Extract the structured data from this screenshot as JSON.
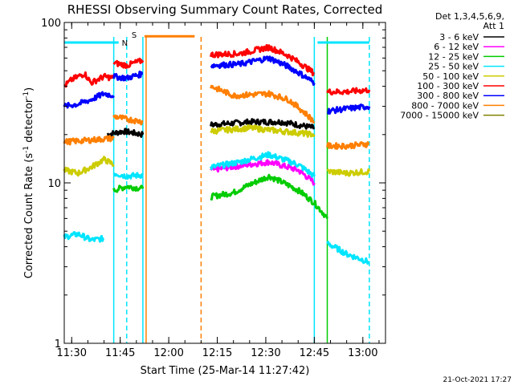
{
  "chart_data": {
    "type": "line",
    "title": "RHESSI Observing Summary Count Rates, Corrected",
    "xlabel": "Start Time (25-Mar-14 11:27:42)",
    "ylabel": "Corrected Count Rate (s⁻¹ detector⁻¹)",
    "ylabel_main": "Corrected Count Rate (s",
    "ylabel_sup1": "-1",
    "ylabel_mid": " detector",
    "ylabel_sup2": "-1",
    "ylabel_end": ")",
    "yscale": "log",
    "ylim": [
      1,
      100
    ],
    "xlim": [
      "11:27:42",
      "13:07:00"
    ],
    "grid": false,
    "xticks": [
      "11:30",
      "11:45",
      "12:00",
      "12:15",
      "12:30",
      "12:45",
      "13:00"
    ],
    "yticks": [
      "1",
      "10",
      "100"
    ],
    "legend_header": [
      "Det 1,3,4,5,6,9,",
      "Att 1"
    ],
    "legend_position": "right",
    "timestamp": "21-Oct-2021 17:27",
    "flags": [
      {
        "label": "N",
        "color": "#00e5ff",
        "segments": [
          [
            "11:27:42",
            "11:44:30"
          ],
          [
            "12:46:00",
            "13:02:00"
          ]
        ],
        "level": 75
      },
      {
        "label": "S",
        "color": "#ff7f00",
        "segments": [
          [
            "11:52:30",
            "12:08:00"
          ]
        ],
        "level": 82
      }
    ],
    "vlines": [
      {
        "t": "11:43:00",
        "color": "#00e5ff",
        "style": "solid"
      },
      {
        "t": "11:47:00",
        "color": "#00e5ff",
        "style": "dashed"
      },
      {
        "t": "11:52:00",
        "color": "#00e5ff",
        "style": "solid"
      },
      {
        "t": "11:53:00",
        "color": "#ff7f00",
        "style": "solid"
      },
      {
        "t": "12:10:00",
        "color": "#ff7f00",
        "style": "dashed"
      },
      {
        "t": "12:45:00",
        "color": "#00e5ff",
        "style": "solid"
      },
      {
        "t": "12:49:00",
        "color": "#00cc00",
        "style": "solid"
      },
      {
        "t": "13:02:00",
        "color": "#00e5ff",
        "style": "dashed"
      }
    ],
    "series": [
      {
        "name": "3 - 6 keV",
        "color": "#000000",
        "segments": [
          {
            "t": [
              "11:41:00",
              "11:46:00",
              "11:52:00"
            ],
            "v": [
              20,
              21,
              20
            ]
          },
          {
            "t": [
              "12:13:00",
              "12:25:00",
              "12:35:00",
              "12:45:00"
            ],
            "v": [
              23,
              24,
              24,
              22
            ]
          }
        ]
      },
      {
        "name": "6 - 12 keV",
        "color": "#ff00ff",
        "segments": [
          {
            "t": [
              "12:13:00",
              "12:22:00",
              "12:31:00",
              "12:40:00",
              "12:45:00"
            ],
            "v": [
              12,
              12.8,
              13.5,
              12,
              10
            ]
          }
        ]
      },
      {
        "name": "12 - 25 keV",
        "color": "#00cc00",
        "segments": [
          {
            "t": [
              "11:43:00",
              "11:47:00",
              "11:52:00"
            ],
            "v": [
              9,
              9.5,
              9.2
            ]
          },
          {
            "t": [
              "12:13:00",
              "12:20:00",
              "12:31:00",
              "12:40:00",
              "12:45:00",
              "12:49:00"
            ],
            "v": [
              8.2,
              8.7,
              11,
              9,
              7.5,
              6
            ]
          }
        ]
      },
      {
        "name": "25 - 50 keV",
        "color": "#00e5ff",
        "segments": [
          {
            "t": [
              "11:27:42",
              "11:32:00",
              "11:36:00",
              "11:40:00"
            ],
            "v": [
              4.6,
              4.8,
              4.4,
              4.5
            ]
          },
          {
            "t": [
              "11:43:00",
              "11:47:00",
              "11:52:00"
            ],
            "v": [
              11.5,
              11,
              11.2
            ]
          },
          {
            "t": [
              "12:13:00",
              "12:22:00",
              "12:31:00",
              "12:40:00",
              "12:45:00"
            ],
            "v": [
              12.5,
              13.5,
              15,
              13,
              11
            ]
          },
          {
            "t": [
              "12:49:00",
              "12:55:00",
              "13:02:00"
            ],
            "v": [
              4.2,
              3.6,
              3.2
            ]
          }
        ]
      },
      {
        "name": "50 - 100 keV",
        "color": "#cccc00",
        "segments": [
          {
            "t": [
              "11:27:42",
              "11:32:00",
              "11:36:00",
              "11:40:00",
              "11:43:00"
            ],
            "v": [
              12,
              11.5,
              12.5,
              14,
              13
            ]
          },
          {
            "t": [
              "12:13:00",
              "12:25:00",
              "12:35:00",
              "12:45:00"
            ],
            "v": [
              21,
              22,
              21,
              20
            ]
          },
          {
            "t": [
              "12:49:00",
              "12:55:00",
              "13:02:00"
            ],
            "v": [
              11.8,
              11.5,
              11.8
            ]
          }
        ]
      },
      {
        "name": "100 - 300 keV",
        "color": "#ff0000",
        "segments": [
          {
            "t": [
              "11:27:42",
              "11:30:00",
              "11:34:00",
              "11:36:00",
              "11:40:00",
              "11:43:00"
            ],
            "v": [
              40,
              44,
              48,
              42,
              46,
              45
            ]
          },
          {
            "t": [
              "11:43:00",
              "11:47:00",
              "11:52:00"
            ],
            "v": [
              56,
              54,
              58
            ]
          },
          {
            "t": [
              "12:13:00",
              "12:22:00",
              "12:31:00",
              "12:37:00",
              "12:45:00"
            ],
            "v": [
              63,
              64,
              70,
              62,
              48
            ]
          },
          {
            "t": [
              "12:49:00",
              "12:55:00",
              "13:02:00"
            ],
            "v": [
              37,
              37,
              38
            ]
          }
        ]
      },
      {
        "name": "300 - 800 keV",
        "color": "#0000ff",
        "segments": [
          {
            "t": [
              "11:27:42",
              "11:32:00",
              "11:36:00",
              "11:40:00",
              "11:43:00"
            ],
            "v": [
              30,
              31,
              33,
              36,
              35
            ]
          },
          {
            "t": [
              "11:43:00",
              "11:47:00",
              "11:52:00"
            ],
            "v": [
              46,
              45,
              48
            ]
          },
          {
            "t": [
              "12:13:00",
              "12:22:00",
              "12:31:00",
              "12:37:00",
              "12:45:00"
            ],
            "v": [
              54,
              55,
              60,
              53,
              42
            ]
          },
          {
            "t": [
              "12:49:00",
              "12:55:00",
              "13:02:00"
            ],
            "v": [
              28,
              29,
              30
            ]
          }
        ]
      },
      {
        "name": "800 - 7000 keV",
        "color": "#ff7f00",
        "segments": [
          {
            "t": [
              "11:27:42",
              "11:36:00",
              "11:43:00"
            ],
            "v": [
              18,
              18.5,
              19
            ]
          },
          {
            "t": [
              "11:43:00",
              "11:47:00",
              "11:52:00"
            ],
            "v": [
              26,
              25,
              24
            ]
          },
          {
            "t": [
              "12:13:00",
              "12:20:00",
              "12:31:00",
              "12:37:00",
              "12:45:00"
            ],
            "v": [
              40,
              35,
              36,
              33,
              24
            ]
          },
          {
            "t": [
              "12:49:00",
              "12:55:00",
              "13:02:00"
            ],
            "v": [
              17,
              17,
              17.5
            ]
          }
        ]
      },
      {
        "name": "7000 - 15000 keV",
        "color": "#808000",
        "segments": []
      }
    ]
  }
}
